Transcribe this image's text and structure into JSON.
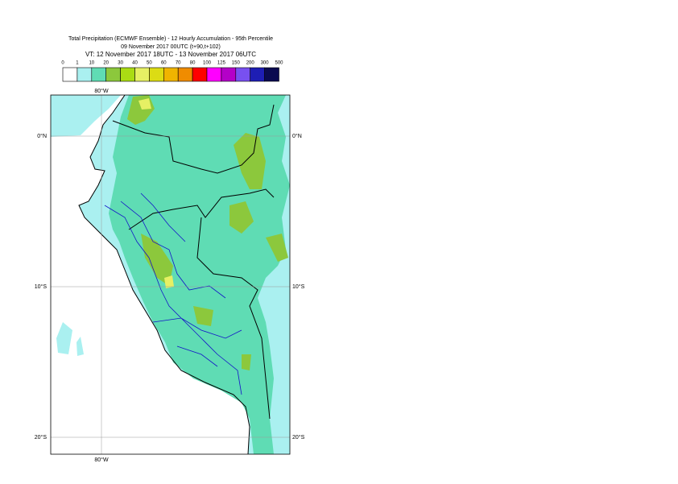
{
  "header": {
    "title": [
      "Total Precipitation (ECMWF Ensemble) - 12 Hourly Accumulation - 95th Percentile",
      "09 November 2017 00UTC (t+90,t+102)",
      "VT: 12 November 2017 18UTC - 13 November 2017 06UTC"
    ]
  },
  "legend": {
    "labels": [
      0,
      1,
      10,
      20,
      30,
      40,
      50,
      60,
      70,
      80,
      100,
      125,
      150,
      200,
      300,
      500
    ],
    "colors": [
      "#ffffff",
      "#aaf0f0",
      "#5fdcb4",
      "#8cc83c",
      "#aadc14",
      "#e6f064",
      "#dcdc14",
      "#f0b400",
      "#f08c00",
      "#ff0000",
      "#ff00ff",
      "#b400c8",
      "#7850f0",
      "#1e1eb4",
      "#0a0a50"
    ]
  },
  "map": {
    "lon_labels": [
      "80°W"
    ],
    "lat_labels": [
      "0°N",
      "10°S",
      "20°S"
    ]
  }
}
